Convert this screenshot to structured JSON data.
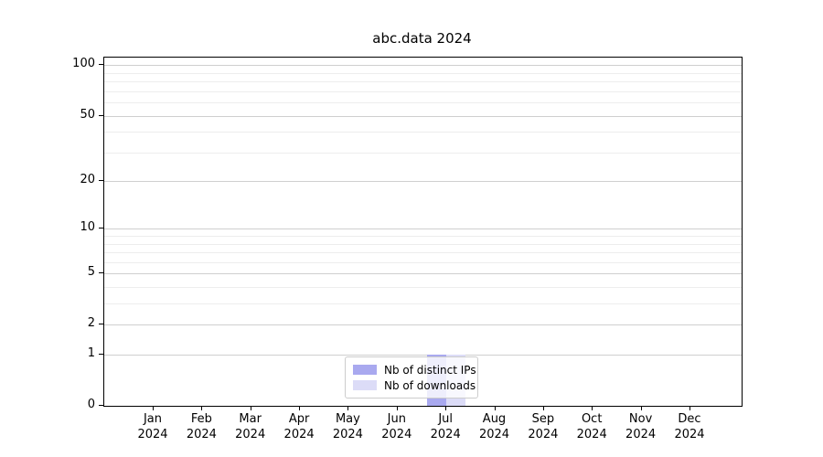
{
  "chart_data": {
    "type": "bar",
    "title": "abc.data 2024",
    "x_months": [
      "Jan",
      "Feb",
      "Mar",
      "Apr",
      "May",
      "Jun",
      "Jul",
      "Aug",
      "Sep",
      "Oct",
      "Nov",
      "Dec"
    ],
    "x_year": "2024",
    "series": [
      {
        "name": "Nb of distinct IPs",
        "color": "#a9a9ef",
        "values": [
          0,
          0,
          0,
          0,
          0,
          0,
          1,
          0,
          0,
          0,
          0,
          0
        ]
      },
      {
        "name": "Nb of downloads",
        "color": "#dcdcf7",
        "values": [
          0,
          0,
          0,
          0,
          0,
          0,
          1,
          0,
          0,
          0,
          0,
          0
        ]
      }
    ],
    "y_ticks": [
      0,
      1,
      2,
      5,
      10,
      20,
      50,
      100
    ],
    "y_minor_ticks": [
      3,
      4,
      6,
      7,
      8,
      9,
      30,
      40,
      60,
      70,
      80,
      90
    ],
    "y_scale": "log1p",
    "ylim": [
      0,
      111
    ],
    "xlabel": "",
    "ylabel": "",
    "grid": "horizontal major+minor",
    "legend_position": "lower center inside plot",
    "colors": {
      "axis": "#000000",
      "grid_major": "#cfcfcf",
      "grid_minor": "#ededed",
      "legend_border": "#cccccc",
      "background": "#ffffff"
    }
  }
}
